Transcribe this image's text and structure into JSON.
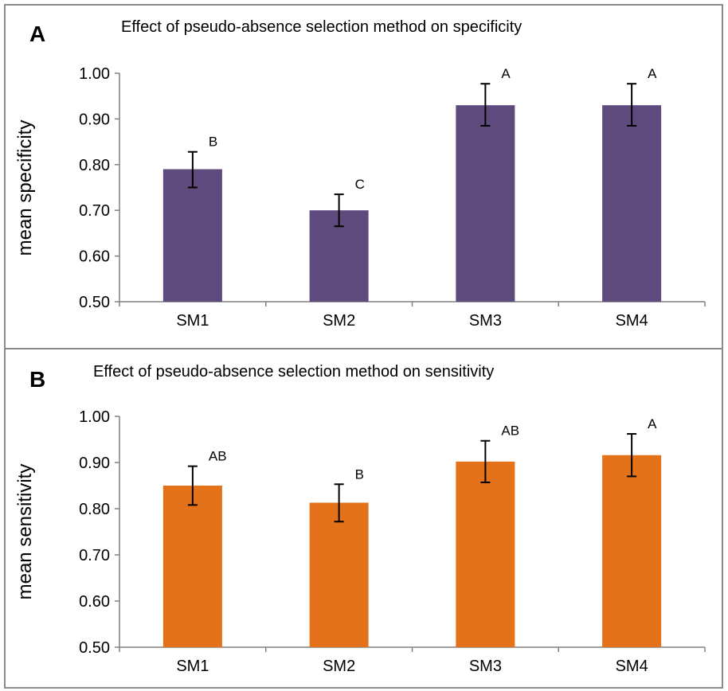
{
  "chart_data": [
    {
      "panel": "A",
      "type": "bar",
      "title": "Effect of pseudo-absence selection method on specificity",
      "xlabel": "",
      "ylabel": "mean specificity",
      "categories": [
        "SM1",
        "SM2",
        "SM3",
        "SM4"
      ],
      "values": [
        0.79,
        0.7,
        0.93,
        0.93
      ],
      "error_low": [
        0.75,
        0.665,
        0.885,
        0.885
      ],
      "error_high": [
        0.828,
        0.735,
        0.977,
        0.977
      ],
      "annotations": [
        "B",
        "C",
        "A",
        "A"
      ],
      "ylim": [
        0.5,
        1.0
      ],
      "yticks": [
        "0.50",
        "0.60",
        "0.70",
        "0.80",
        "0.90",
        "1.00"
      ],
      "grid": false,
      "bar_color": "#5e4a7c"
    },
    {
      "panel": "B",
      "type": "bar",
      "title": "Effect of pseudo-absence selection method on sensitivity",
      "xlabel": "",
      "ylabel": "mean sensitivity",
      "categories": [
        "SM1",
        "SM2",
        "SM3",
        "SM4"
      ],
      "values": [
        0.85,
        0.813,
        0.902,
        0.916
      ],
      "error_low": [
        0.808,
        0.772,
        0.857,
        0.87
      ],
      "error_high": [
        0.892,
        0.853,
        0.947,
        0.962
      ],
      "annotations": [
        "AB",
        "B",
        "AB",
        "A"
      ],
      "ylim": [
        0.5,
        1.0
      ],
      "yticks": [
        "0.50",
        "0.60",
        "0.70",
        "0.80",
        "0.90",
        "1.00"
      ],
      "grid": false,
      "bar_color": "#e4721a"
    }
  ]
}
